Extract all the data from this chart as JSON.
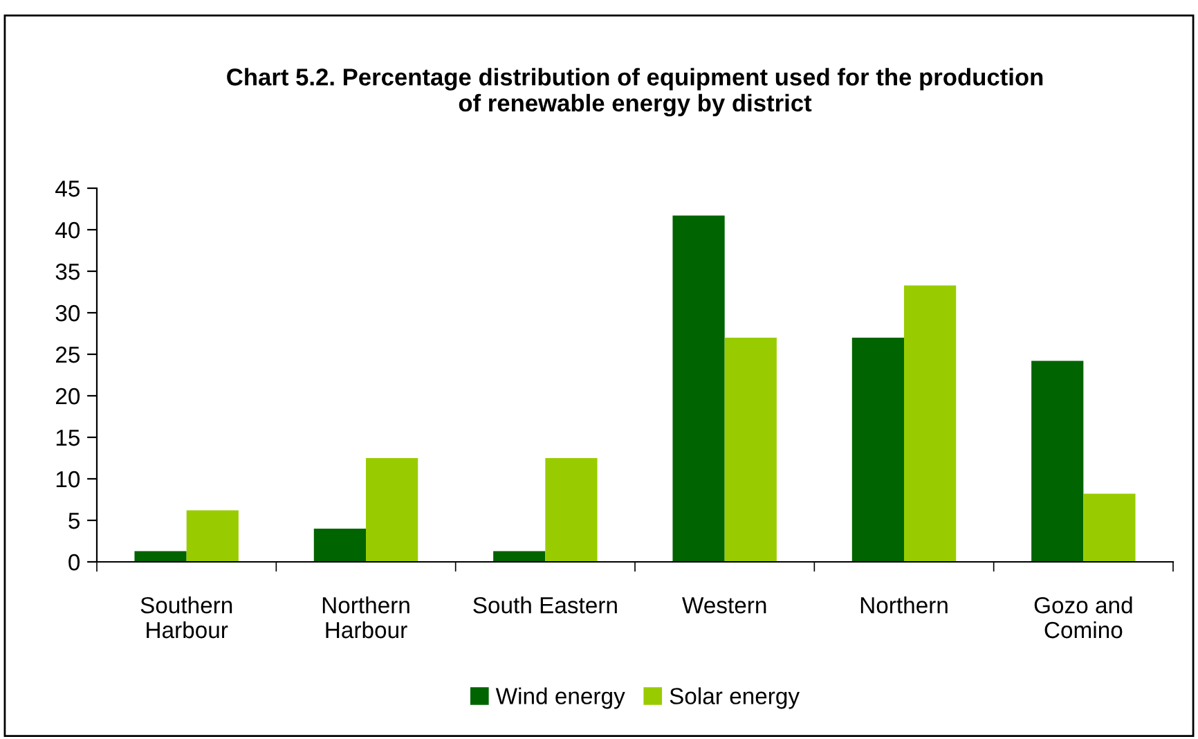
{
  "chart_data": {
    "type": "bar",
    "title": "Chart 5.2. Percentage distribution of equipment used for the production\nof renewable energy by district",
    "categories": [
      "Southern\nHarbour",
      "Northern\nHarbour",
      "South Eastern",
      "Western",
      "Northern",
      "Gozo and\nComino"
    ],
    "series": [
      {
        "name": "Wind energy",
        "color": "#006400",
        "values": [
          1.3,
          4.0,
          1.3,
          41.7,
          27.0,
          24.2
        ]
      },
      {
        "name": "Solar energy",
        "color": "#99cc00",
        "values": [
          6.2,
          12.5,
          12.5,
          27.0,
          33.3,
          8.2
        ]
      }
    ],
    "ylim": [
      0,
      45
    ],
    "yticks": [
      0,
      5,
      10,
      15,
      20,
      25,
      30,
      35,
      40,
      45
    ],
    "grid": false,
    "legend": "bottom"
  }
}
